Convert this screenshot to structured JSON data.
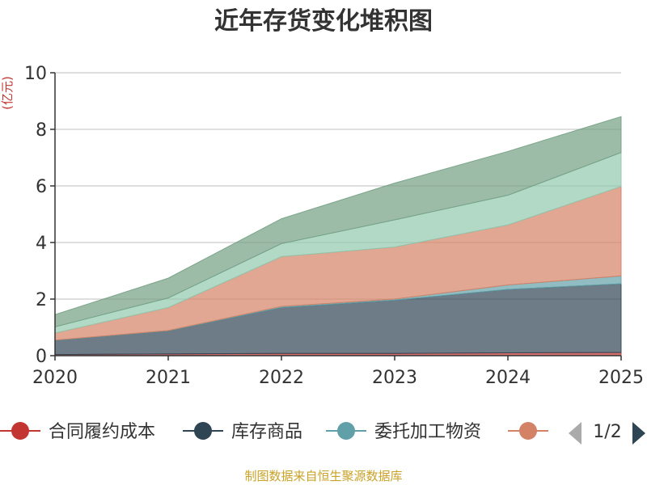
{
  "chart_data": {
    "type": "area",
    "stacked": true,
    "title": "近年存货变化堆积图",
    "unit_label": "(亿元)",
    "x": [
      "2020",
      "2021",
      "2022",
      "2023",
      "2024",
      "2025"
    ],
    "ylim": [
      0,
      10
    ],
    "yticks": [
      "0",
      "2",
      "4",
      "6",
      "8",
      "10"
    ],
    "grid": true,
    "series": [
      {
        "name": "合同履约成本",
        "color": "#c23531",
        "values": [
          0.04,
          0.06,
          0.08,
          0.08,
          0.1,
          0.11
        ]
      },
      {
        "name": "库存商品",
        "color": "#2f4554",
        "values": [
          0.5,
          0.82,
          1.62,
          1.88,
          2.24,
          2.43
        ]
      },
      {
        "name": "委托加工物资",
        "color": "#61a0a8",
        "values": [
          0.01,
          0.01,
          0.04,
          0.04,
          0.16,
          0.28
        ]
      },
      {
        "name": "",
        "color": "#d48265",
        "values": [
          0.25,
          0.81,
          1.76,
          1.84,
          2.12,
          3.16
        ]
      },
      {
        "name": "",
        "color": "#91c7ae",
        "values": [
          0.22,
          0.34,
          0.46,
          0.96,
          1.05,
          1.2
        ]
      },
      {
        "name": "",
        "color": "#749f83",
        "values": [
          0.43,
          0.7,
          0.88,
          1.3,
          1.55,
          1.27
        ]
      }
    ],
    "legend": {
      "position": "bottom",
      "items": [
        "合同履约成本",
        "库存商品",
        "委托加工物资",
        ""
      ],
      "page": "1/2"
    }
  },
  "footer": "制图数据来自恒生聚源数据库"
}
